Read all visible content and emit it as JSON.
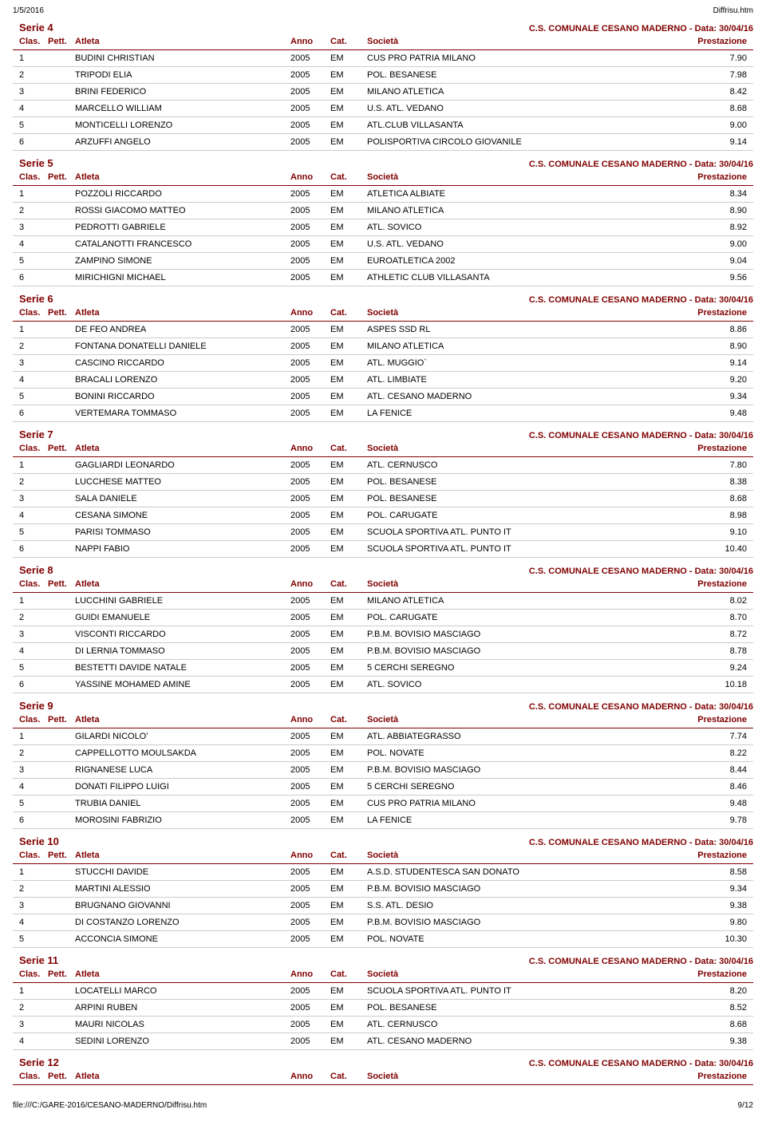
{
  "page": {
    "date": "1/5/2016",
    "filename": "Diffrisu.htm",
    "footer_path": "file:///C:/GARE-2016/CESANO-MADERNO/Diffrisu.htm",
    "footer_page": "9/12"
  },
  "colors": {
    "primary": "#800000",
    "row_border": "#cccccc"
  },
  "columns": {
    "clas": "Clas.",
    "pett": "Pett.",
    "atleta": "Atleta",
    "anno": "Anno",
    "cat": "Cat.",
    "societa": "Società",
    "prestazione": "Prestazione"
  },
  "meta_text": "C.S. COMUNALE CESANO MADERNO - Data: 30/04/16",
  "series": [
    {
      "title": "Serie 4",
      "rows": [
        {
          "clas": "1",
          "atleta": "BUDINI CHRISTIAN",
          "anno": "2005",
          "cat": "EM",
          "soc": "CUS PRO PATRIA MILANO",
          "prest": "7.90"
        },
        {
          "clas": "2",
          "atleta": "TRIPODI ELIA",
          "anno": "2005",
          "cat": "EM",
          "soc": "POL. BESANESE",
          "prest": "7.98"
        },
        {
          "clas": "3",
          "atleta": "BRINI FEDERICO",
          "anno": "2005",
          "cat": "EM",
          "soc": "MILANO ATLETICA",
          "prest": "8.42"
        },
        {
          "clas": "4",
          "atleta": "MARCELLO WILLIAM",
          "anno": "2005",
          "cat": "EM",
          "soc": "U.S. ATL. VEDANO",
          "prest": "8.68"
        },
        {
          "clas": "5",
          "atleta": "MONTICELLI LORENZO",
          "anno": "2005",
          "cat": "EM",
          "soc": "ATL.CLUB VILLASANTA",
          "prest": "9.00"
        },
        {
          "clas": "6",
          "atleta": "ARZUFFI ANGELO",
          "anno": "2005",
          "cat": "EM",
          "soc": "POLISPORTIVA CIRCOLO GIOVANILE",
          "prest": "9.14"
        }
      ]
    },
    {
      "title": "Serie 5",
      "rows": [
        {
          "clas": "1",
          "atleta": "POZZOLI RICCARDO",
          "anno": "2005",
          "cat": "EM",
          "soc": "ATLETICA ALBIATE",
          "prest": "8.34"
        },
        {
          "clas": "2",
          "atleta": "ROSSI GIACOMO MATTEO",
          "anno": "2005",
          "cat": "EM",
          "soc": "MILANO ATLETICA",
          "prest": "8.90"
        },
        {
          "clas": "3",
          "atleta": "PEDROTTI GABRIELE",
          "anno": "2005",
          "cat": "EM",
          "soc": "ATL. SOVICO",
          "prest": "8.92"
        },
        {
          "clas": "4",
          "atleta": "CATALANOTTI FRANCESCO",
          "anno": "2005",
          "cat": "EM",
          "soc": "U.S. ATL. VEDANO",
          "prest": "9.00"
        },
        {
          "clas": "5",
          "atleta": "ZAMPINO SIMONE",
          "anno": "2005",
          "cat": "EM",
          "soc": "EUROATLETICA 2002",
          "prest": "9.04"
        },
        {
          "clas": "6",
          "atleta": "MIRICHIGNI MICHAEL",
          "anno": "2005",
          "cat": "EM",
          "soc": "ATHLETIC CLUB VILLASANTA",
          "prest": "9.56"
        }
      ]
    },
    {
      "title": "Serie 6",
      "rows": [
        {
          "clas": "1",
          "atleta": "DE FEO ANDREA",
          "anno": "2005",
          "cat": "EM",
          "soc": "ASPES SSD RL",
          "prest": "8.86"
        },
        {
          "clas": "2",
          "atleta": "FONTANA DONATELLI DANIELE",
          "anno": "2005",
          "cat": "EM",
          "soc": "MILANO ATLETICA",
          "prest": "8.90"
        },
        {
          "clas": "3",
          "atleta": "CASCINO RICCARDO",
          "anno": "2005",
          "cat": "EM",
          "soc": "ATL. MUGGIO`",
          "prest": "9.14"
        },
        {
          "clas": "4",
          "atleta": "BRACALI LORENZO",
          "anno": "2005",
          "cat": "EM",
          "soc": "ATL. LIMBIATE",
          "prest": "9.20"
        },
        {
          "clas": "5",
          "atleta": "BONINI RICCARDO",
          "anno": "2005",
          "cat": "EM",
          "soc": "ATL. CESANO MADERNO",
          "prest": "9.34"
        },
        {
          "clas": "6",
          "atleta": "VERTEMARA TOMMASO",
          "anno": "2005",
          "cat": "EM",
          "soc": "LA FENICE",
          "prest": "9.48"
        }
      ]
    },
    {
      "title": "Serie 7",
      "rows": [
        {
          "clas": "1",
          "atleta": "GAGLIARDI LEONARDO",
          "anno": "2005",
          "cat": "EM",
          "soc": "ATL. CERNUSCO",
          "prest": "7.80"
        },
        {
          "clas": "2",
          "atleta": "LUCCHESE MATTEO",
          "anno": "2005",
          "cat": "EM",
          "soc": "POL. BESANESE",
          "prest": "8.38"
        },
        {
          "clas": "3",
          "atleta": "SALA DANIELE",
          "anno": "2005",
          "cat": "EM",
          "soc": "POL. BESANESE",
          "prest": "8.68"
        },
        {
          "clas": "4",
          "atleta": "CESANA SIMONE",
          "anno": "2005",
          "cat": "EM",
          "soc": "POL. CARUGATE",
          "prest": "8.98"
        },
        {
          "clas": "5",
          "atleta": "PARISI TOMMASO",
          "anno": "2005",
          "cat": "EM",
          "soc": "SCUOLA SPORTIVA ATL. PUNTO IT",
          "prest": "9.10"
        },
        {
          "clas": "6",
          "atleta": "NAPPI FABIO",
          "anno": "2005",
          "cat": "EM",
          "soc": "SCUOLA SPORTIVA ATL. PUNTO IT",
          "prest": "10.40"
        }
      ]
    },
    {
      "title": "Serie 8",
      "rows": [
        {
          "clas": "1",
          "atleta": "LUCCHINI GABRIELE",
          "anno": "2005",
          "cat": "EM",
          "soc": "MILANO ATLETICA",
          "prest": "8.02"
        },
        {
          "clas": "2",
          "atleta": "GUIDI EMANUELE",
          "anno": "2005",
          "cat": "EM",
          "soc": "POL. CARUGATE",
          "prest": "8.70"
        },
        {
          "clas": "3",
          "atleta": "VISCONTI RICCARDO",
          "anno": "2005",
          "cat": "EM",
          "soc": "P.B.M. BOVISIO MASCIAGO",
          "prest": "8.72"
        },
        {
          "clas": "4",
          "atleta": "DI LERNIA TOMMASO",
          "anno": "2005",
          "cat": "EM",
          "soc": "P.B.M. BOVISIO MASCIAGO",
          "prest": "8.78"
        },
        {
          "clas": "5",
          "atleta": "BESTETTI DAVIDE NATALE",
          "anno": "2005",
          "cat": "EM",
          "soc": "5 CERCHI SEREGNO",
          "prest": "9.24"
        },
        {
          "clas": "6",
          "atleta": "YASSINE MOHAMED AMINE",
          "anno": "2005",
          "cat": "EM",
          "soc": "ATL. SOVICO",
          "prest": "10.18"
        }
      ]
    },
    {
      "title": "Serie 9",
      "rows": [
        {
          "clas": "1",
          "atleta": "GILARDI NICOLO'",
          "anno": "2005",
          "cat": "EM",
          "soc": "ATL. ABBIATEGRASSO",
          "prest": "7.74"
        },
        {
          "clas": "2",
          "atleta": "CAPPELLOTTO MOULSAKDA",
          "anno": "2005",
          "cat": "EM",
          "soc": "POL. NOVATE",
          "prest": "8.22"
        },
        {
          "clas": "3",
          "atleta": "RIGNANESE LUCA",
          "anno": "2005",
          "cat": "EM",
          "soc": "P.B.M. BOVISIO MASCIAGO",
          "prest": "8.44"
        },
        {
          "clas": "4",
          "atleta": "DONATI FILIPPO LUIGI",
          "anno": "2005",
          "cat": "EM",
          "soc": "5 CERCHI SEREGNO",
          "prest": "8.46"
        },
        {
          "clas": "5",
          "atleta": "TRUBIA DANIEL",
          "anno": "2005",
          "cat": "EM",
          "soc": "CUS PRO PATRIA MILANO",
          "prest": "9.48"
        },
        {
          "clas": "6",
          "atleta": "MOROSINI FABRIZIO",
          "anno": "2005",
          "cat": "EM",
          "soc": "LA FENICE",
          "prest": "9.78"
        }
      ]
    },
    {
      "title": "Serie 10",
      "rows": [
        {
          "clas": "1",
          "atleta": "STUCCHI DAVIDE",
          "anno": "2005",
          "cat": "EM",
          "soc": "A.S.D. STUDENTESCA SAN DONATO",
          "prest": "8.58"
        },
        {
          "clas": "2",
          "atleta": "MARTINI ALESSIO",
          "anno": "2005",
          "cat": "EM",
          "soc": "P.B.M. BOVISIO MASCIAGO",
          "prest": "9.34"
        },
        {
          "clas": "3",
          "atleta": "BRUGNANO GIOVANNI",
          "anno": "2005",
          "cat": "EM",
          "soc": "S.S. ATL. DESIO",
          "prest": "9.38"
        },
        {
          "clas": "4",
          "atleta": "DI COSTANZO LORENZO",
          "anno": "2005",
          "cat": "EM",
          "soc": "P.B.M. BOVISIO MASCIAGO",
          "prest": "9.80"
        },
        {
          "clas": "5",
          "atleta": "ACCONCIA SIMONE",
          "anno": "2005",
          "cat": "EM",
          "soc": "POL. NOVATE",
          "prest": "10.30"
        }
      ]
    },
    {
      "title": "Serie 11",
      "rows": [
        {
          "clas": "1",
          "atleta": "LOCATELLI MARCO",
          "anno": "2005",
          "cat": "EM",
          "soc": "SCUOLA SPORTIVA ATL. PUNTO IT",
          "prest": "8.20"
        },
        {
          "clas": "2",
          "atleta": "ARPINI RUBEN",
          "anno": "2005",
          "cat": "EM",
          "soc": "POL. BESANESE",
          "prest": "8.52"
        },
        {
          "clas": "3",
          "atleta": "MAURI NICOLAS",
          "anno": "2005",
          "cat": "EM",
          "soc": "ATL. CERNUSCO",
          "prest": "8.68"
        },
        {
          "clas": "4",
          "atleta": "SEDINI LORENZO",
          "anno": "2005",
          "cat": "EM",
          "soc": "ATL. CESANO MADERNO",
          "prest": "9.38"
        }
      ]
    },
    {
      "title": "Serie 12",
      "rows": []
    }
  ]
}
